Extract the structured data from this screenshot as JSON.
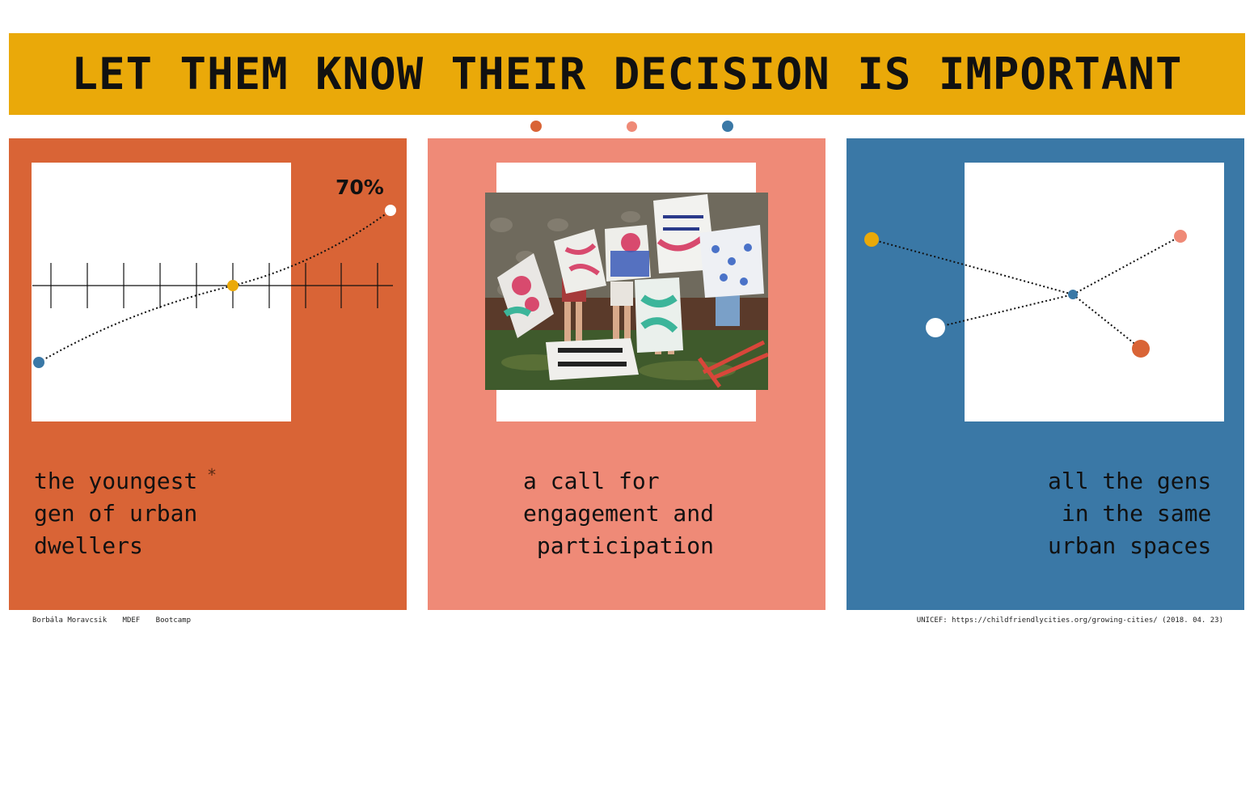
{
  "title": "LET THEM KNOW THEIR DECISION IS IMPORTANT",
  "colors": {
    "orange": "#d96436",
    "salmon": "#ef8a77",
    "blue": "#3a78a6",
    "yellow": "#eaa909"
  },
  "panels": [
    {
      "caption": "the youngest\ngen of urban\ndwellers",
      "asterisk": "*",
      "stat": "70%"
    },
    {
      "caption": "a call for\nengagement and\n participation"
    },
    {
      "caption": "all the gens\n in the same\nurban spaces"
    }
  ],
  "footer": {
    "author": "Borbála Moravcsik",
    "program": "MDEF",
    "course": "Bootcamp",
    "source": "UNICEF: https://childfriendlycities.org/growing-cities/ (2018. 04. 23)"
  }
}
